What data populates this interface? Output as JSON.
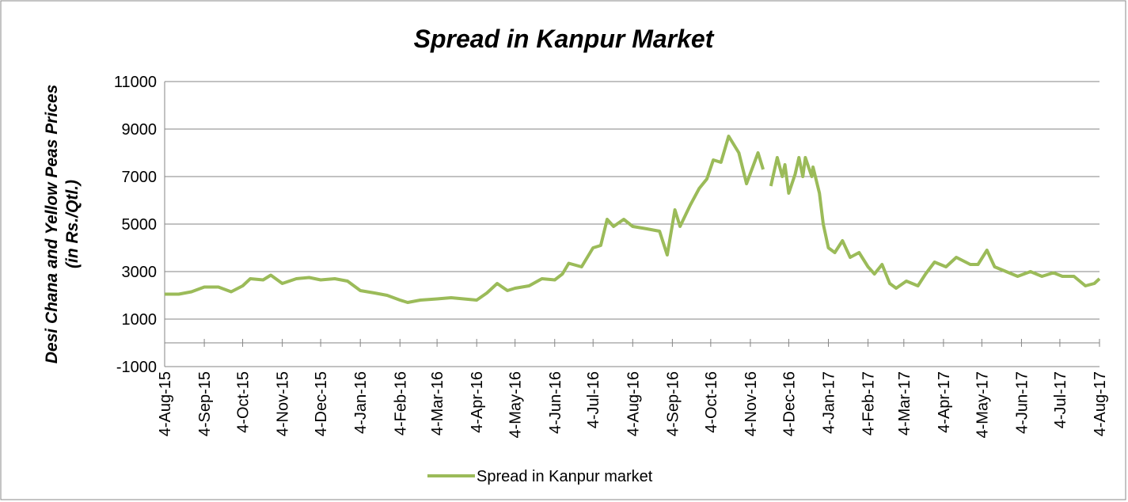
{
  "chart_data": {
    "type": "line",
    "title": "Spread in Kanpur Market",
    "y_label": [
      "Desi  Chana and Yellow Peas Prices",
      "(in Rs./Qtl.)"
    ],
    "xlim": [
      "2015-08-04",
      "2017-08-04"
    ],
    "xticks": [
      {
        "value": "2015-08-04",
        "label": "4-Aug-15"
      },
      {
        "value": "2015-09-04",
        "label": "4-Sep-15"
      },
      {
        "value": "2015-10-04",
        "label": "4-Oct-15"
      },
      {
        "value": "2015-11-04",
        "label": "4-Nov-15"
      },
      {
        "value": "2015-12-04",
        "label": "4-Dec-15"
      },
      {
        "value": "2016-01-04",
        "label": "4-Jan-16"
      },
      {
        "value": "2016-02-04",
        "label": "4-Feb-16"
      },
      {
        "value": "2016-03-04",
        "label": "4-Mar-16"
      },
      {
        "value": "2016-04-04",
        "label": "4-Apr-16"
      },
      {
        "value": "2016-05-04",
        "label": "4-May-16"
      },
      {
        "value": "2016-06-04",
        "label": "4-Jun-16"
      },
      {
        "value": "2016-07-04",
        "label": "4-Jul-16"
      },
      {
        "value": "2016-08-04",
        "label": "4-Aug-16"
      },
      {
        "value": "2016-09-04",
        "label": "4-Sep-16"
      },
      {
        "value": "2016-10-04",
        "label": "4-Oct-16"
      },
      {
        "value": "2016-11-04",
        "label": "4-Nov-16"
      },
      {
        "value": "2016-12-04",
        "label": "4-Dec-16"
      },
      {
        "value": "2017-01-04",
        "label": "4-Jan-17"
      },
      {
        "value": "2017-02-04",
        "label": "4-Feb-17"
      },
      {
        "value": "2017-03-04",
        "label": "4-Mar-17"
      },
      {
        "value": "2017-04-04",
        "label": "4-Apr-17"
      },
      {
        "value": "2017-05-04",
        "label": "4-May-17"
      },
      {
        "value": "2017-06-04",
        "label": "4-Jun-17"
      },
      {
        "value": "2017-07-04",
        "label": "4-Jul-17"
      },
      {
        "value": "2017-08-04",
        "label": "4-Aug-17"
      }
    ],
    "ylim": [
      -1000,
      11000
    ],
    "yticks": [
      -1000,
      1000,
      3000,
      5000,
      7000,
      9000,
      11000
    ],
    "grid": true,
    "legend": "bottom",
    "x": [
      "2015-08-04",
      "2015-08-15",
      "2015-08-25",
      "2015-09-04",
      "2015-09-15",
      "2015-09-25",
      "2015-10-04",
      "2015-10-10",
      "2015-10-20",
      "2015-10-26",
      "2015-11-04",
      "2015-11-15",
      "2015-11-25",
      "2015-12-04",
      "2015-12-15",
      "2015-12-25",
      "2016-01-04",
      "2016-01-15",
      "2016-01-25",
      "2016-02-04",
      "2016-02-10",
      "2016-02-20",
      "2016-03-04",
      "2016-03-15",
      "2016-03-25",
      "2016-04-04",
      "2016-04-12",
      "2016-04-20",
      "2016-04-28",
      "2016-05-04",
      "2016-05-15",
      "2016-05-25",
      "2016-06-04",
      "2016-06-10",
      "2016-06-15",
      "2016-06-25",
      "2016-07-04",
      "2016-07-10",
      "2016-07-15",
      "2016-07-20",
      "2016-07-28",
      "2016-08-04",
      "2016-08-15",
      "2016-08-25",
      "2016-08-31",
      "2016-09-06",
      "2016-09-10",
      "2016-09-18",
      "2016-09-25",
      "2016-10-01",
      "2016-10-06",
      "2016-10-12",
      "2016-10-18",
      "2016-10-26",
      "2016-11-01",
      "2016-11-10",
      "2016-11-14",
      "2016-11-17",
      "2016-11-20",
      "2016-11-25",
      "2016-11-29",
      "2016-12-01",
      "2016-12-04",
      "2016-12-09",
      "2016-12-12",
      "2016-12-15",
      "2016-12-17",
      "2016-12-22",
      "2016-12-23",
      "2016-12-28",
      "2016-12-31",
      "2017-01-04",
      "2017-01-09",
      "2017-01-15",
      "2017-01-21",
      "2017-01-28",
      "2017-02-04",
      "2017-02-09",
      "2017-02-15",
      "2017-02-21",
      "2017-02-26",
      "2017-03-06",
      "2017-03-15",
      "2017-03-21",
      "2017-03-28",
      "2017-04-06",
      "2017-04-14",
      "2017-04-25",
      "2017-05-01",
      "2017-05-08",
      "2017-05-14",
      "2017-05-23",
      "2017-06-01",
      "2017-06-11",
      "2017-06-20",
      "2017-06-29",
      "2017-07-06",
      "2017-07-15",
      "2017-07-24",
      "2017-07-31",
      "2017-08-04"
    ],
    "series": [
      {
        "name": "Spread in Kanpur market",
        "color": "#9bbb59",
        "values": [
          2050,
          2050,
          2150,
          2350,
          2350,
          2150,
          2400,
          2700,
          2650,
          2850,
          2500,
          2700,
          2750,
          2650,
          2700,
          2600,
          2200,
          2100,
          2000,
          1800,
          1700,
          1800,
          1850,
          1900,
          1850,
          1800,
          2100,
          2500,
          2200,
          2300,
          2400,
          2700,
          2650,
          2900,
          3350,
          3200,
          4000,
          4100,
          5200,
          4900,
          5200,
          4900,
          4800,
          4700,
          3700,
          5600,
          4900,
          5800,
          6500,
          6900,
          7700,
          7600,
          8700,
          8000,
          6700,
          8000,
          7300,
          null,
          6600,
          7800,
          7000,
          7500,
          6300,
          7100,
          7800,
          7000,
          7800,
          7000,
          7400,
          6300,
          5000,
          4000,
          3800,
          4300,
          3600,
          3800,
          3200,
          2900,
          3300,
          2500,
          2300,
          2600,
          2400,
          2900,
          3400,
          3200,
          3600,
          3300,
          3300,
          3900,
          3200,
          3000,
          2800,
          3000,
          2800,
          2950,
          2800,
          2800,
          2400,
          2500,
          2700
        ]
      }
    ]
  }
}
